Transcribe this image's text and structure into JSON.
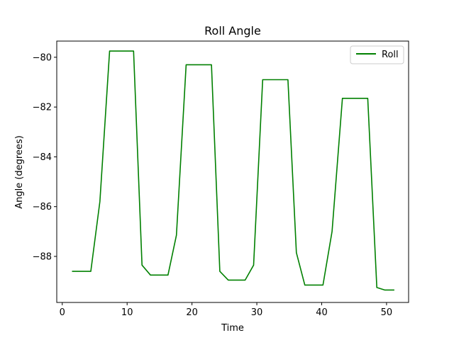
{
  "chart_data": {
    "type": "line",
    "title": "Roll Angle",
    "xlabel": "Time",
    "ylabel": "Angle (degrees)",
    "xlim": [
      -0.85,
      53.4
    ],
    "ylim": [
      -89.85,
      -79.35
    ],
    "xticks": [
      0,
      10,
      20,
      30,
      40,
      50
    ],
    "yticks": [
      -88,
      -86,
      -84,
      -82,
      -80
    ],
    "ytick_labels": [
      "−88",
      "−86",
      "−84",
      "−82",
      "−80"
    ],
    "grid": false,
    "legend_position": "top-right",
    "series": [
      {
        "name": "Roll",
        "color": "#008000",
        "x": [
          1.5,
          4.4,
          5.8,
          7.3,
          11.0,
          12.3,
          13.6,
          16.3,
          17.6,
          19.1,
          23.0,
          24.3,
          25.6,
          28.2,
          29.5,
          30.9,
          34.8,
          36.1,
          37.4,
          40.2,
          41.6,
          43.2,
          47.1,
          48.5,
          49.7,
          51.2
        ],
        "y": [
          -88.6,
          -88.6,
          -85.8,
          -79.75,
          -79.75,
          -88.35,
          -88.75,
          -88.75,
          -87.15,
          -80.3,
          -80.3,
          -88.6,
          -88.95,
          -88.95,
          -88.35,
          -80.9,
          -80.9,
          -87.85,
          -89.15,
          -89.15,
          -87.0,
          -81.65,
          -81.65,
          -89.25,
          -89.35,
          -89.35
        ]
      }
    ]
  }
}
